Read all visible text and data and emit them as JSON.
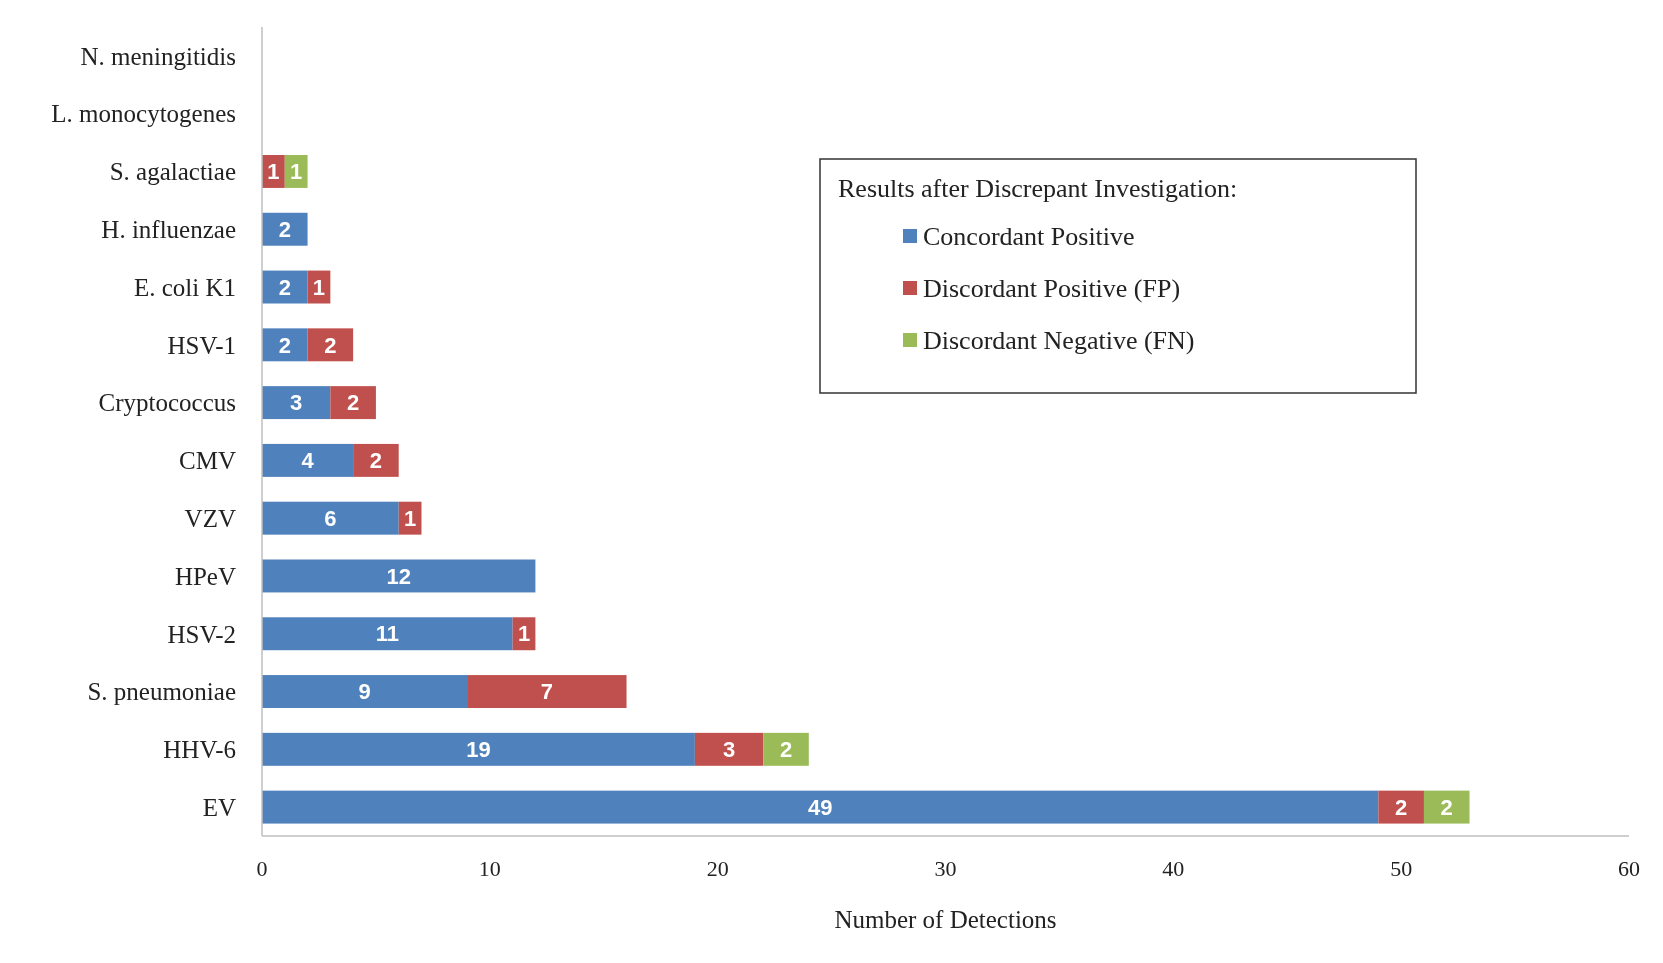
{
  "chart_data": {
    "type": "bar",
    "orientation": "horizontal",
    "stacked": true,
    "xlabel": "Number of Detections",
    "legend_title": "Results after Discrepant Investigation:",
    "legend": "top right",
    "data_labels": true,
    "xlim": [
      0,
      60
    ],
    "xticks": [
      0,
      10,
      20,
      30,
      40,
      50,
      60
    ],
    "categories": [
      "N. meningitidis",
      "L. monocytogenes",
      "S. agalactiae",
      "H. influenzae",
      "E. coli K1",
      "HSV-1",
      "Cryptococcus",
      "CMV",
      "VZV",
      "HPeV",
      "HSV-2",
      "S. pneumoniae",
      "HHV-6",
      "EV"
    ],
    "series": [
      {
        "name": "Concordant Positive",
        "color": "#4f81bd",
        "values": [
          null,
          null,
          null,
          2,
          2,
          2,
          3,
          4,
          6,
          12,
          11,
          9,
          19,
          49
        ]
      },
      {
        "name": "Discordant Positive (FP)",
        "color": "#c0504d",
        "values": [
          null,
          null,
          1,
          null,
          1,
          2,
          2,
          2,
          1,
          null,
          1,
          7,
          3,
          2
        ]
      },
      {
        "name": "Discordant Negative (FN)",
        "color": "#9bbb59",
        "values": [
          null,
          null,
          1,
          null,
          null,
          null,
          null,
          null,
          null,
          null,
          null,
          null,
          2,
          2
        ]
      }
    ]
  }
}
